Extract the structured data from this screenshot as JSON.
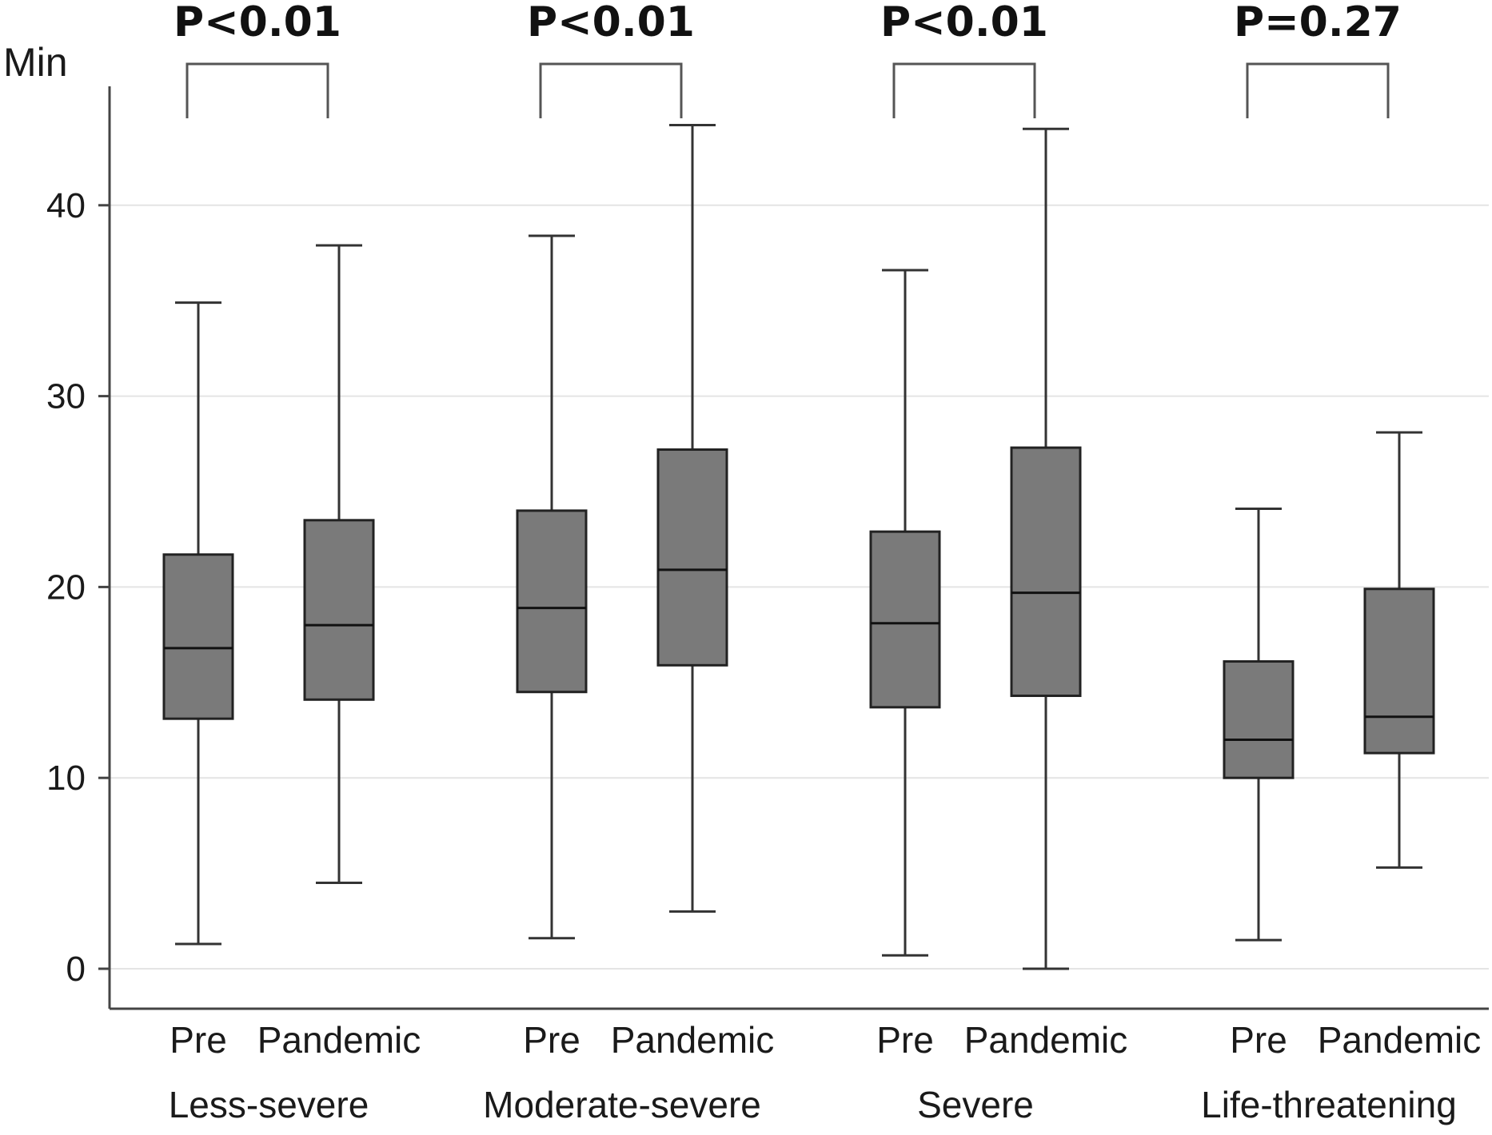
{
  "chart_data": {
    "type": "box",
    "title": "",
    "ylabel": "Min",
    "ylim": [
      0,
      45
    ],
    "yticks": [
      0,
      10,
      20,
      30,
      40
    ],
    "grid": true,
    "box_color": "#7a7a7a",
    "line_color": "#333333",
    "grid_color": "#e4e4e4",
    "subgroup_labels": [
      "Pre",
      "Pandemic"
    ],
    "groups": [
      {
        "name": "Less-severe",
        "p_value": "P<0.01",
        "boxes": [
          {
            "label": "Pre",
            "min": 1.3,
            "q1": 13.1,
            "median": 16.8,
            "q3": 21.7,
            "max": 34.9
          },
          {
            "label": "Pandemic",
            "min": 4.5,
            "q1": 14.1,
            "median": 18.0,
            "q3": 23.5,
            "max": 37.9
          }
        ]
      },
      {
        "name": "Moderate-severe",
        "p_value": "P<0.01",
        "boxes": [
          {
            "label": "Pre",
            "min": 1.6,
            "q1": 14.5,
            "median": 18.9,
            "q3": 24.0,
            "max": 38.4
          },
          {
            "label": "Pandemic",
            "min": 3.0,
            "q1": 15.9,
            "median": 20.9,
            "q3": 27.2,
            "max": 44.2
          }
        ]
      },
      {
        "name": "Severe",
        "p_value": "P<0.01",
        "boxes": [
          {
            "label": "Pre",
            "min": 0.7,
            "q1": 13.7,
            "median": 18.1,
            "q3": 22.9,
            "max": 36.6
          },
          {
            "label": "Pandemic",
            "min": 0.0,
            "q1": 14.3,
            "median": 19.7,
            "q3": 27.3,
            "max": 44.0
          }
        ]
      },
      {
        "name": "Life-threatening",
        "p_value": "P=0.27",
        "boxes": [
          {
            "label": "Pre",
            "min": 1.5,
            "q1": 10.0,
            "median": 12.0,
            "q3": 16.1,
            "max": 24.1
          },
          {
            "label": "Pandemic",
            "min": 5.3,
            "q1": 11.3,
            "median": 13.2,
            "q3": 19.9,
            "max": 28.1
          }
        ]
      }
    ]
  }
}
